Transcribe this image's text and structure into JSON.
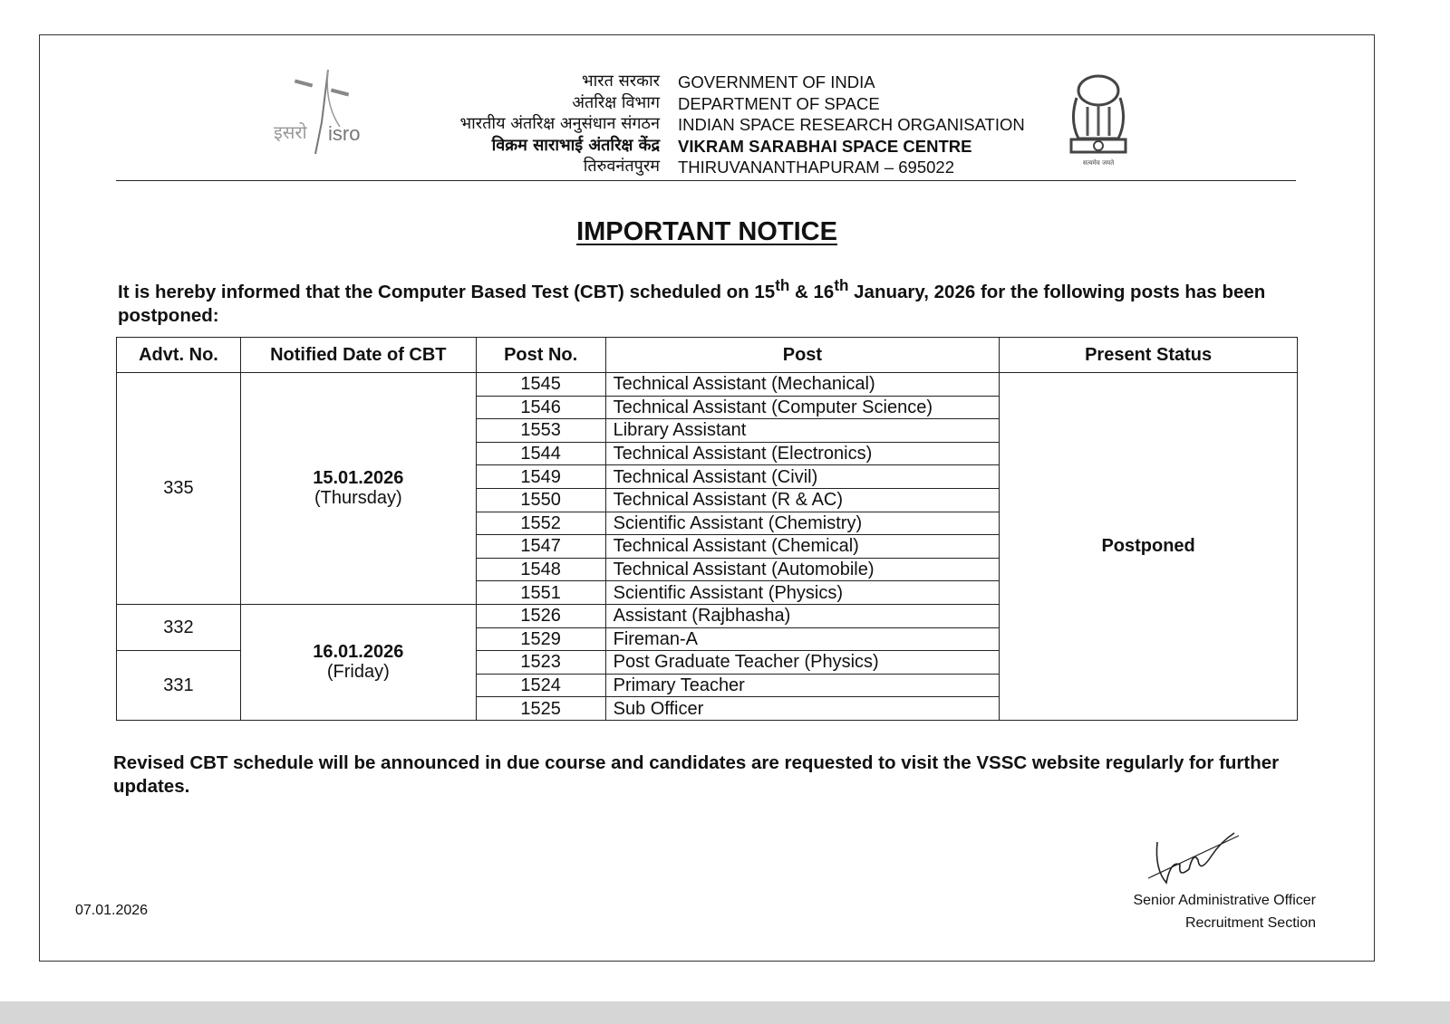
{
  "header": {
    "hindi_lines": [
      "भारत सरकार",
      "अंतरिक्ष विभाग",
      "भारतीय अंतरिक्ष अनुसंधान संगठन",
      "विक्रम साराभाई अंतरिक्ष केंद्र",
      "तिरुवनंतपुरम"
    ],
    "english_lines": [
      "GOVERNMENT OF INDIA",
      "DEPARTMENT OF SPACE",
      "INDIAN SPACE RESEARCH ORGANISATION",
      "VIKRAM SARABHAI SPACE CENTRE",
      "THIRUVANANTHAPURAM – 695022"
    ],
    "isro_logo_text": "इसरो isro",
    "emblem_text": "सत्यमेव जयते"
  },
  "title": "IMPORTANT NOTICE",
  "intro": {
    "before": "It is hereby informed that the Computer Based Test (CBT) scheduled on 15",
    "sup1": "th",
    "mid": " & 16",
    "sup2": "th",
    "after": " January, 2026 for the following posts has been postponed:"
  },
  "table": {
    "headers": [
      "Advt. No.",
      "Notified Date of CBT",
      "Post No.",
      "Post",
      "Present Status"
    ],
    "groups": [
      {
        "advt": "335",
        "date": "15.01.2026",
        "day": "(Thursday)"
      },
      {
        "advt": "332"
      },
      {
        "advt": "331"
      },
      {
        "date": "16.01.2026",
        "day": "(Friday)"
      }
    ],
    "rows": [
      {
        "post_no": "1545",
        "post": "Technical Assistant (Mechanical)"
      },
      {
        "post_no": "1546",
        "post": "Technical Assistant (Computer Science)"
      },
      {
        "post_no": "1553",
        "post": "Library Assistant"
      },
      {
        "post_no": "1544",
        "post": "Technical Assistant (Electronics)"
      },
      {
        "post_no": "1549",
        "post": "Technical Assistant (Civil)"
      },
      {
        "post_no": "1550",
        "post": "Technical Assistant (R & AC)"
      },
      {
        "post_no": "1552",
        "post": "Scientific Assistant (Chemistry)"
      },
      {
        "post_no": "1547",
        "post": "Technical Assistant (Chemical)"
      },
      {
        "post_no": "1548",
        "post": "Technical Assistant (Automobile)"
      },
      {
        "post_no": "1551",
        "post": "Scientific Assistant (Physics)"
      },
      {
        "post_no": "1526",
        "post": "Assistant (Rajbhasha)"
      },
      {
        "post_no": "1529",
        "post": "Fireman-A"
      },
      {
        "post_no": "1523",
        "post": "Post Graduate Teacher (Physics)"
      },
      {
        "post_no": "1524",
        "post": "Primary Teacher"
      },
      {
        "post_no": "1525",
        "post": "Sub Officer"
      }
    ],
    "status": "Postponed"
  },
  "outro": "Revised CBT schedule will be announced in due course and candidates are requested to visit the VSSC website regularly for further updates.",
  "signatory": {
    "designation": "Senior Administrative Officer",
    "section": "Recruitment Section"
  },
  "date": "07.01.2026"
}
